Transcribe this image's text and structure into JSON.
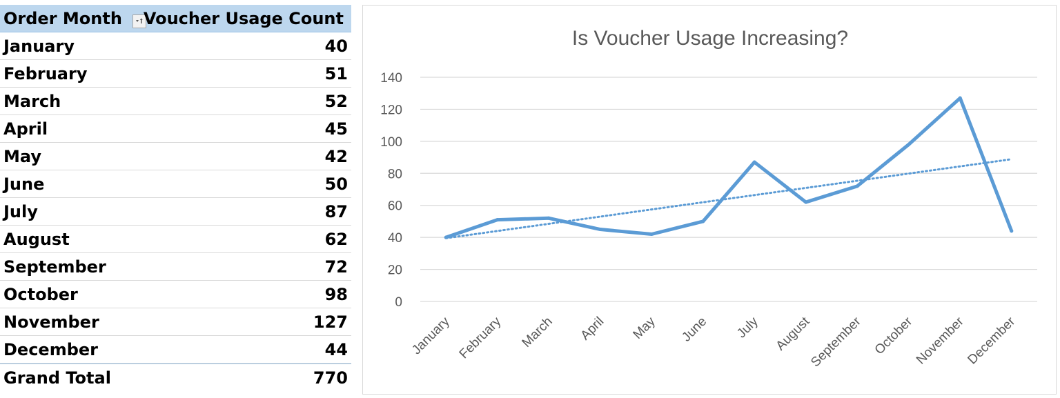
{
  "pivot": {
    "header": {
      "row_label": "Order Month",
      "value_label": "Voucher Usage Count",
      "filter_icon": "sort-filter-icon"
    },
    "rows": [
      {
        "label": "January",
        "value": "40"
      },
      {
        "label": "February",
        "value": "51"
      },
      {
        "label": "March",
        "value": "52"
      },
      {
        "label": "April",
        "value": "45"
      },
      {
        "label": "May",
        "value": "42"
      },
      {
        "label": "June",
        "value": "50"
      },
      {
        "label": "July",
        "value": "87"
      },
      {
        "label": "August",
        "value": "62"
      },
      {
        "label": "September",
        "value": "72"
      },
      {
        "label": "October",
        "value": "98"
      },
      {
        "label": "November",
        "value": "127"
      },
      {
        "label": "December",
        "value": "44"
      }
    ],
    "total": {
      "label": "Grand Total",
      "value": "770"
    }
  },
  "chart_data": {
    "type": "line",
    "title": "Is Voucher Usage Increasing?",
    "categories": [
      "January",
      "February",
      "March",
      "April",
      "May",
      "June",
      "July",
      "August",
      "September",
      "October",
      "November",
      "December"
    ],
    "series": [
      {
        "values": [
          40,
          51,
          52,
          45,
          42,
          50,
          87,
          62,
          72,
          98,
          127,
          44
        ],
        "color": "#5b9bd5",
        "style": "solid"
      }
    ],
    "trendline": {
      "type": "linear",
      "style": "dotted",
      "color": "#5b9bd5"
    },
    "ylim": [
      0,
      140
    ],
    "yticks": [
      0,
      20,
      40,
      60,
      80,
      100,
      120,
      140
    ],
    "grid": true,
    "legend": "none",
    "xlabel": "",
    "ylabel": ""
  }
}
